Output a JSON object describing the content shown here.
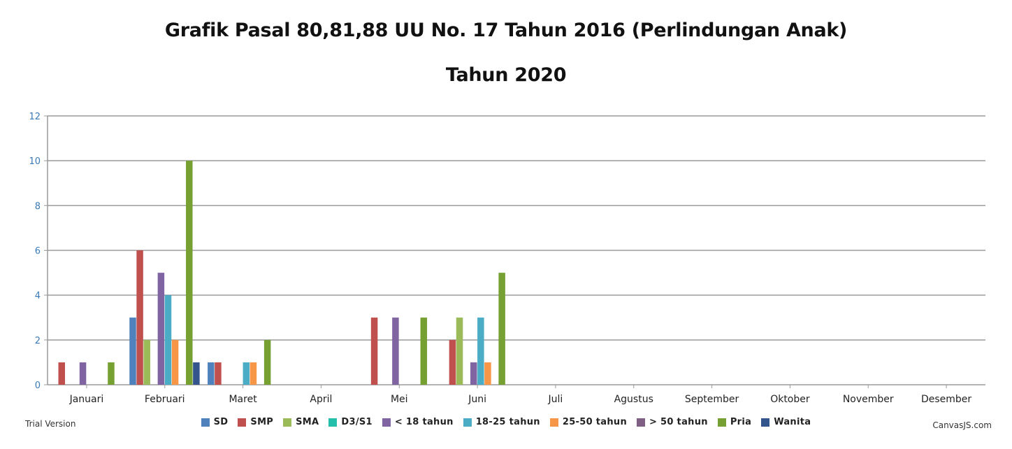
{
  "title": "Grafik Pasal 80,81,88 UU No. 17 Tahun 2016 (Perlindungan Anak)",
  "subtitle": "Tahun 2020",
  "footer": {
    "trial": "Trial Version",
    "credit": "CanvasJS.com"
  },
  "chart_data": {
    "type": "bar",
    "title": "Grafik Pasal 80,81,88 UU No. 17 Tahun 2016 (Perlindungan Anak)",
    "subtitle": "Tahun 2020",
    "xlabel": "",
    "ylabel": "",
    "ylim": [
      0,
      12
    ],
    "yticks": [
      0,
      2,
      4,
      6,
      8,
      10,
      12
    ],
    "grid": true,
    "legend_position": "bottom",
    "categories": [
      "Januari",
      "Februari",
      "Maret",
      "April",
      "Mei",
      "Juni",
      "Juli",
      "Agustus",
      "September",
      "Oktober",
      "November",
      "Desember"
    ],
    "series": [
      {
        "name": "SD",
        "color": "#4f81bc",
        "values": [
          0,
          3,
          1,
          0,
          0,
          0,
          0,
          0,
          0,
          0,
          0,
          0
        ]
      },
      {
        "name": "SMP",
        "color": "#c0504e",
        "values": [
          1,
          6,
          1,
          0,
          3,
          2,
          0,
          0,
          0,
          0,
          0,
          0
        ]
      },
      {
        "name": "SMA",
        "color": "#9bbb58",
        "values": [
          0,
          2,
          0,
          0,
          0,
          3,
          0,
          0,
          0,
          0,
          0,
          0
        ]
      },
      {
        "name": "D3/S1",
        "color": "#23bfaa",
        "values": [
          0,
          0,
          0,
          0,
          0,
          0,
          0,
          0,
          0,
          0,
          0,
          0
        ]
      },
      {
        "name": "< 18 tahun",
        "color": "#8064a1",
        "values": [
          1,
          5,
          0,
          0,
          3,
          1,
          0,
          0,
          0,
          0,
          0,
          0
        ]
      },
      {
        "name": "18-25 tahun",
        "color": "#4aacc5",
        "values": [
          0,
          4,
          1,
          0,
          0,
          3,
          0,
          0,
          0,
          0,
          0,
          0
        ]
      },
      {
        "name": "25-50 tahun",
        "color": "#f79647",
        "values": [
          0,
          2,
          1,
          0,
          0,
          1,
          0,
          0,
          0,
          0,
          0,
          0
        ]
      },
      {
        "name": "> 50 tahun",
        "color": "#7f6084",
        "values": [
          0,
          0,
          0,
          0,
          0,
          0,
          0,
          0,
          0,
          0,
          0,
          0
        ]
      },
      {
        "name": "Pria",
        "color": "#77a033",
        "values": [
          1,
          10,
          2,
          0,
          3,
          5,
          0,
          0,
          0,
          0,
          0,
          0
        ]
      },
      {
        "name": "Wanita",
        "color": "#33558b",
        "values": [
          0,
          1,
          0,
          0,
          0,
          0,
          0,
          0,
          0,
          0,
          0,
          0
        ]
      }
    ]
  }
}
